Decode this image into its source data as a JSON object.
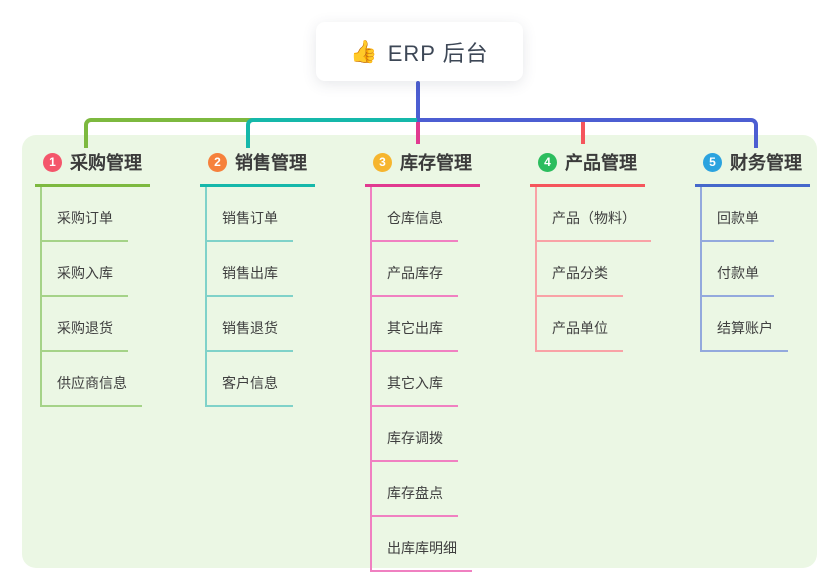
{
  "root": {
    "icon": "👍",
    "title": "ERP 后台"
  },
  "colors": {
    "trunk": "#4c5ed2",
    "panel_bg": "#ebf7e4",
    "root_text": "#3d4756"
  },
  "branches": [
    {
      "badge": "1",
      "label": "采购管理",
      "colors": {
        "badge": "#f4566b",
        "line": "#7db93f",
        "child_line": "#a5d388",
        "connector": "#7db93f"
      },
      "children": [
        "采购订单",
        "采购入库",
        "采购退货",
        "供应商信息"
      ]
    },
    {
      "badge": "2",
      "label": "销售管理",
      "colors": {
        "badge": "#f6813c",
        "line": "#15b8aa",
        "child_line": "#7fd2c9",
        "connector": "#15b8aa"
      },
      "children": [
        "销售订单",
        "销售出库",
        "销售退货",
        "客户信息"
      ]
    },
    {
      "badge": "3",
      "label": "库存管理",
      "colors": {
        "badge": "#f6b52e",
        "line": "#e13a90",
        "child_line": "#f080c1",
        "connector": "#e13a90"
      },
      "children": [
        "仓库信息",
        "产品库存",
        "其它出库",
        "其它入库",
        "库存调拨",
        "库存盘点",
        "出库库明细"
      ]
    },
    {
      "badge": "4",
      "label": "产品管理",
      "colors": {
        "badge": "#2cbd5e",
        "line": "#f5555c",
        "child_line": "#f9a2a6",
        "connector": "#f5555c"
      },
      "children": [
        "产品（物料）",
        "产品分类",
        "产品单位"
      ]
    },
    {
      "badge": "5",
      "label": "财务管理",
      "colors": {
        "badge": "#2ba3df",
        "line": "#4568cb",
        "child_line": "#93a9dd",
        "connector": "#4c5ed2"
      },
      "children": [
        "回款单",
        "付款单",
        "结算账户"
      ]
    }
  ]
}
